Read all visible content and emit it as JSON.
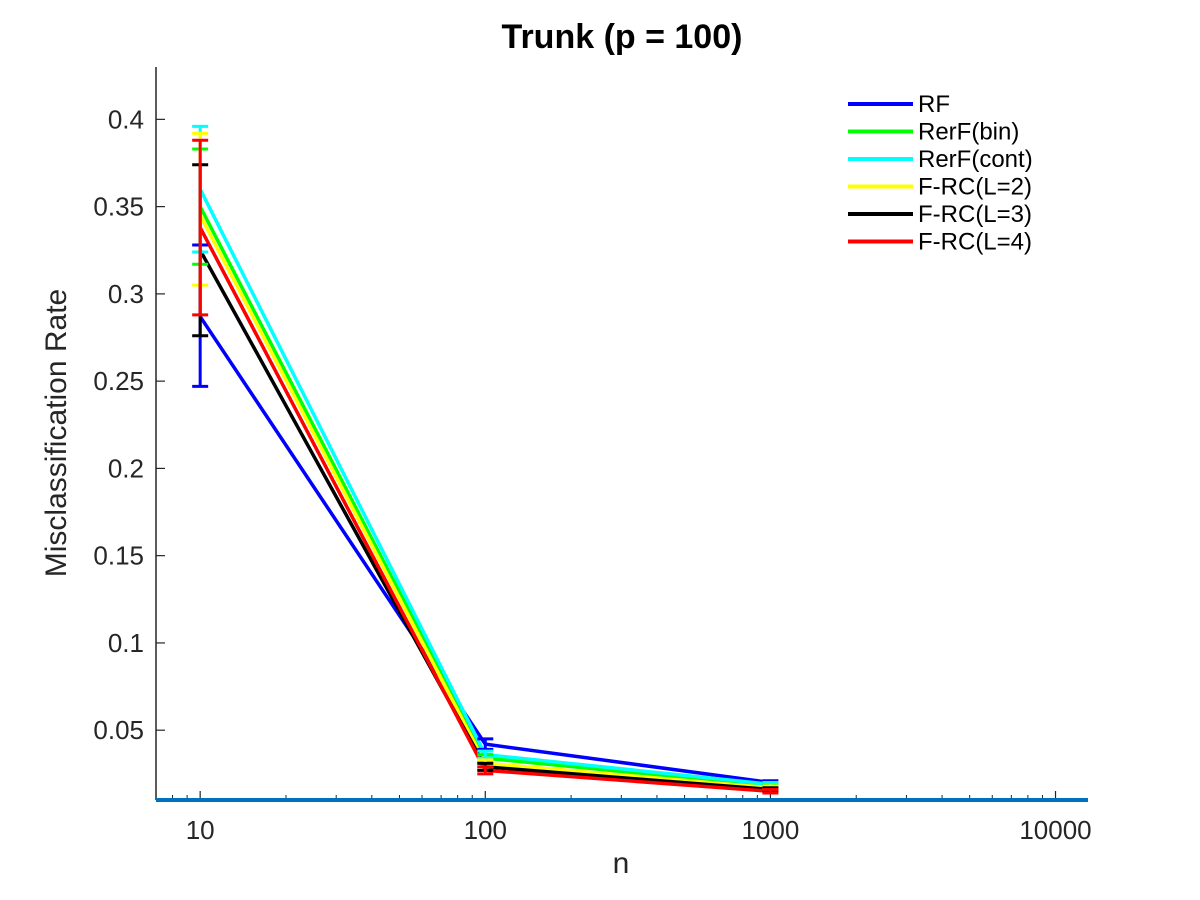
{
  "chart_data": {
    "type": "line",
    "title": "Trunk (p = 100)",
    "xlabel": "n",
    "ylabel": "Misclassification Rate",
    "xscale": "log",
    "xlim": [
      7,
      13000
    ],
    "ylim": [
      0.01,
      0.43
    ],
    "xticks": [
      10,
      100,
      1000,
      10000
    ],
    "xtick_labels": [
      "10",
      "100",
      "1000",
      "10000"
    ],
    "yticks": [
      0.05,
      0.1,
      0.15,
      0.2,
      0.25,
      0.3,
      0.35,
      0.4
    ],
    "ytick_labels": [
      "0.05",
      "0.1",
      "0.15",
      "0.2",
      "0.25",
      "0.3",
      "0.35",
      "0.4"
    ],
    "grid": false,
    "legend_position": "top-right",
    "x": [
      10,
      100,
      1000
    ],
    "series": [
      {
        "name": "RF",
        "color": "#0000ff",
        "values": [
          0.287,
          0.042,
          0.02
        ],
        "err_low": [
          0.247,
          0.039,
          0.019
        ],
        "err_high": [
          0.328,
          0.045,
          0.021
        ]
      },
      {
        "name": "RerF(bin)",
        "color": "#00ff00",
        "values": [
          0.35,
          0.034,
          0.018
        ],
        "err_low": [
          0.317,
          0.032,
          0.017
        ],
        "err_high": [
          0.383,
          0.036,
          0.019
        ]
      },
      {
        "name": "RerF(cont)",
        "color": "#00ffff",
        "values": [
          0.36,
          0.036,
          0.019
        ],
        "err_low": [
          0.324,
          0.034,
          0.018
        ],
        "err_high": [
          0.396,
          0.038,
          0.02
        ]
      },
      {
        "name": "F-RC(L=2)",
        "color": "#ffff00",
        "values": [
          0.345,
          0.031,
          0.017
        ],
        "err_low": [
          0.305,
          0.029,
          0.016
        ],
        "err_high": [
          0.392,
          0.033,
          0.018
        ]
      },
      {
        "name": "F-RC(L=3)",
        "color": "#000000",
        "values": [
          0.325,
          0.029,
          0.016
        ],
        "err_low": [
          0.276,
          0.027,
          0.015
        ],
        "err_high": [
          0.374,
          0.031,
          0.017
        ]
      },
      {
        "name": "F-RC(L=4)",
        "color": "#ff0000",
        "values": [
          0.338,
          0.027,
          0.015
        ],
        "err_low": [
          0.288,
          0.025,
          0.014
        ],
        "err_high": [
          0.388,
          0.029,
          0.016
        ]
      }
    ],
    "baseline_color": "#0072bd"
  }
}
